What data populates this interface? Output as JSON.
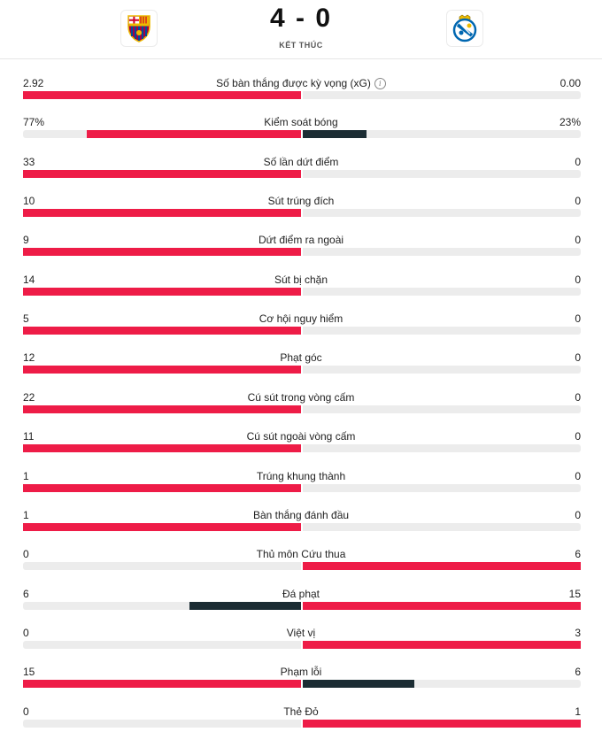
{
  "match": {
    "score": "4 - 0",
    "status": "KẾT THÚC",
    "home_logo": "barcelona-crest",
    "away_logo": "real-sociedad-crest"
  },
  "colors": {
    "leader": "#ee1c47",
    "trailer": "#1b2c33",
    "track": "#ececec"
  },
  "stats": [
    {
      "label": "Số bàn thắng được kỳ vọng (xG)",
      "home": "2.92",
      "away": "0.00",
      "home_value": 2.92,
      "away_value": 0,
      "info": true
    },
    {
      "label": "Kiểm soát bóng",
      "home": "77%",
      "away": "23%",
      "home_value": 77,
      "away_value": 23
    },
    {
      "label": "Số lần dứt điểm",
      "home": "33",
      "away": "0",
      "home_value": 33,
      "away_value": 0
    },
    {
      "label": "Sút trúng đích",
      "home": "10",
      "away": "0",
      "home_value": 10,
      "away_value": 0
    },
    {
      "label": "Dứt điểm ra ngoài",
      "home": "9",
      "away": "0",
      "home_value": 9,
      "away_value": 0
    },
    {
      "label": "Sút bị chặn",
      "home": "14",
      "away": "0",
      "home_value": 14,
      "away_value": 0
    },
    {
      "label": "Cơ hội nguy hiểm",
      "home": "5",
      "away": "0",
      "home_value": 5,
      "away_value": 0
    },
    {
      "label": "Phạt góc",
      "home": "12",
      "away": "0",
      "home_value": 12,
      "away_value": 0
    },
    {
      "label": "Cú sút trong vòng cấm",
      "home": "22",
      "away": "0",
      "home_value": 22,
      "away_value": 0
    },
    {
      "label": "Cú sút ngoài vòng cấm",
      "home": "11",
      "away": "0",
      "home_value": 11,
      "away_value": 0
    },
    {
      "label": "Trúng khung thành",
      "home": "1",
      "away": "0",
      "home_value": 1,
      "away_value": 0
    },
    {
      "label": "Bàn thắng đánh đầu",
      "home": "1",
      "away": "0",
      "home_value": 1,
      "away_value": 0
    },
    {
      "label": "Thủ môn Cứu thua",
      "home": "0",
      "away": "6",
      "home_value": 0,
      "away_value": 6
    },
    {
      "label": "Đá phạt",
      "home": "6",
      "away": "15",
      "home_value": 6,
      "away_value": 15
    },
    {
      "label": "Việt vị",
      "home": "0",
      "away": "3",
      "home_value": 0,
      "away_value": 3
    },
    {
      "label": "Phạm lỗi",
      "home": "15",
      "away": "6",
      "home_value": 15,
      "away_value": 6
    },
    {
      "label": "Thẻ Đỏ",
      "home": "0",
      "away": "1",
      "home_value": 0,
      "away_value": 1
    }
  ]
}
